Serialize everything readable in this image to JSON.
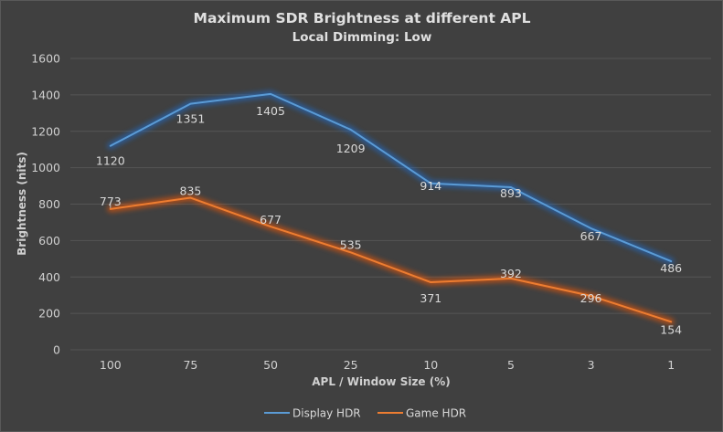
{
  "chart_data": {
    "type": "line",
    "title": "Maximum  SDR Brightness  at different APL",
    "subtitle": "Local Dimming: Low",
    "xlabel": "APL / Window Size (%)",
    "ylabel": "Brightness (nits)",
    "categories": [
      "100",
      "75",
      "50",
      "25",
      "10",
      "5",
      "3",
      "1"
    ],
    "ylim": [
      0,
      1600
    ],
    "yticks": [
      0,
      200,
      400,
      600,
      800,
      1000,
      1200,
      1400,
      1600
    ],
    "grid": true,
    "legend_position": "bottom",
    "series": [
      {
        "name": "Display HDR",
        "color": "#5b9bd5",
        "glow": "#1f6fd6",
        "values": [
          1120,
          1351,
          1405,
          1209,
          914,
          893,
          667,
          486
        ]
      },
      {
        "name": "Game HDR",
        "color": "#ed7d31",
        "glow": "#ff5a00",
        "values": [
          773,
          835,
          677,
          535,
          371,
          392,
          296,
          154
        ]
      }
    ]
  }
}
